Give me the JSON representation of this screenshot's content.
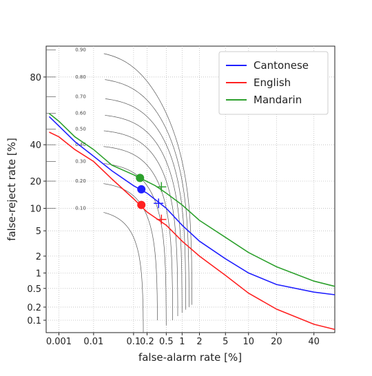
{
  "chart_data": {
    "type": "det",
    "x_label": "false-alarm rate [%]",
    "y_label": "false-reject rate [%]",
    "xlim": [
      0.0004,
      53
    ],
    "ylim": [
      0.05,
      91
    ],
    "xticks": [
      0.001,
      0.01,
      0.1,
      0.2,
      0.5,
      1,
      2,
      5,
      10,
      20,
      40
    ],
    "yticks": [
      0.1,
      0.2,
      0.5,
      1,
      2,
      5,
      10,
      20,
      40,
      80
    ],
    "grid": true,
    "legend": "upper right",
    "contours": [
      {
        "value": 0.1,
        "label": "0.10"
      },
      {
        "value": 0.2,
        "label": "0.20"
      },
      {
        "value": 0.3,
        "label": "0.30"
      },
      {
        "value": 0.4,
        "label": "0.40"
      },
      {
        "value": 0.5,
        "label": "0.50"
      },
      {
        "value": 0.6,
        "label": "0.60"
      },
      {
        "value": 0.7,
        "label": "0.70"
      },
      {
        "value": 0.8,
        "label": "0.80"
      },
      {
        "value": 0.9,
        "label": "0.90"
      }
    ],
    "series": [
      {
        "name": "Cantonese",
        "color": "#1f1fff",
        "x": [
          0.0005,
          0.001,
          0.003,
          0.01,
          0.03,
          0.1,
          0.2,
          0.5,
          1,
          2,
          5,
          10,
          20,
          40,
          53
        ],
        "values": [
          58,
          52,
          42,
          33,
          25,
          18,
          15,
          10,
          6,
          3.5,
          1.8,
          1,
          0.6,
          0.42,
          0.37
        ],
        "points": [
          {
            "x": 0.15,
            "y": 16.5,
            "marker": "o"
          },
          {
            "x": 0.35,
            "y": 11.5,
            "marker": "+"
          }
        ]
      },
      {
        "name": "English",
        "color": "#ff2020",
        "x": [
          0.0005,
          0.001,
          0.003,
          0.01,
          0.03,
          0.1,
          0.2,
          0.5,
          1,
          2,
          5,
          10,
          20,
          40,
          53
        ],
        "values": [
          48,
          45,
          37,
          30,
          21,
          13,
          9,
          6,
          3.5,
          2,
          0.9,
          0.4,
          0.18,
          0.08,
          0.06
        ],
        "points": [
          {
            "x": 0.15,
            "y": 11,
            "marker": "o"
          },
          {
            "x": 0.4,
            "y": 7.2,
            "marker": "+"
          }
        ]
      },
      {
        "name": "Mandarin",
        "color": "#2ca02c",
        "x": [
          0.0005,
          0.001,
          0.003,
          0.01,
          0.03,
          0.1,
          0.3,
          0.5,
          1,
          2,
          5,
          10,
          20,
          40,
          53
        ],
        "values": [
          60,
          55,
          45,
          37,
          28,
          23,
          18,
          15,
          11,
          7,
          4,
          2.3,
          1.3,
          0.7,
          0.55
        ],
        "points": [
          {
            "x": 0.14,
            "y": 21.5,
            "marker": "o"
          },
          {
            "x": 0.4,
            "y": 17.5,
            "marker": "+"
          }
        ]
      }
    ]
  }
}
